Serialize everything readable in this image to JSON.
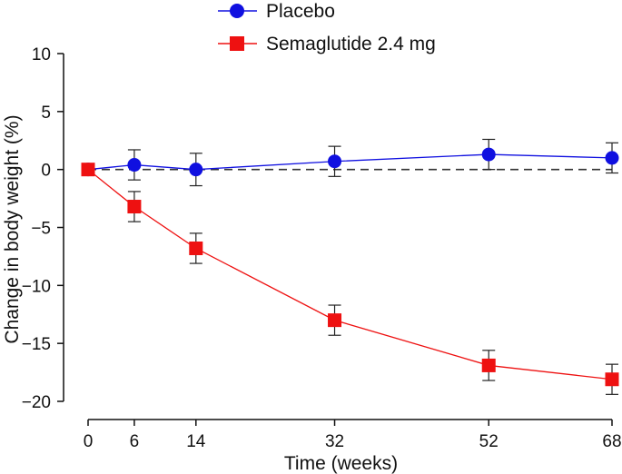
{
  "chart_data": {
    "type": "line",
    "xlabel": "Time (weeks)",
    "ylabel": "Change in body weight (%)",
    "x": [
      0,
      6,
      14,
      32,
      52,
      68
    ],
    "xticks": [
      0,
      6,
      14,
      32,
      52,
      68
    ],
    "yticks": [
      10,
      5,
      0,
      -5,
      -10,
      -15,
      -20
    ],
    "xlim": [
      0,
      68
    ],
    "ylim": [
      -20,
      10
    ],
    "reference_line_y": 0,
    "grid": false,
    "legend_position": "top-center",
    "series": [
      {
        "name": "Placebo",
        "color": "#1010e0",
        "marker": "circle",
        "values": [
          0,
          0.4,
          0.0,
          0.7,
          1.3,
          1.0
        ],
        "error": [
          0,
          1.3,
          1.4,
          1.3,
          1.3,
          1.3
        ]
      },
      {
        "name": "Semaglutide 2.4 mg",
        "color": "#ee1111",
        "marker": "square",
        "values": [
          0,
          -3.2,
          -6.8,
          -13.0,
          -16.9,
          -18.1
        ],
        "error": [
          0,
          1.3,
          1.3,
          1.3,
          1.3,
          1.3
        ]
      }
    ]
  }
}
